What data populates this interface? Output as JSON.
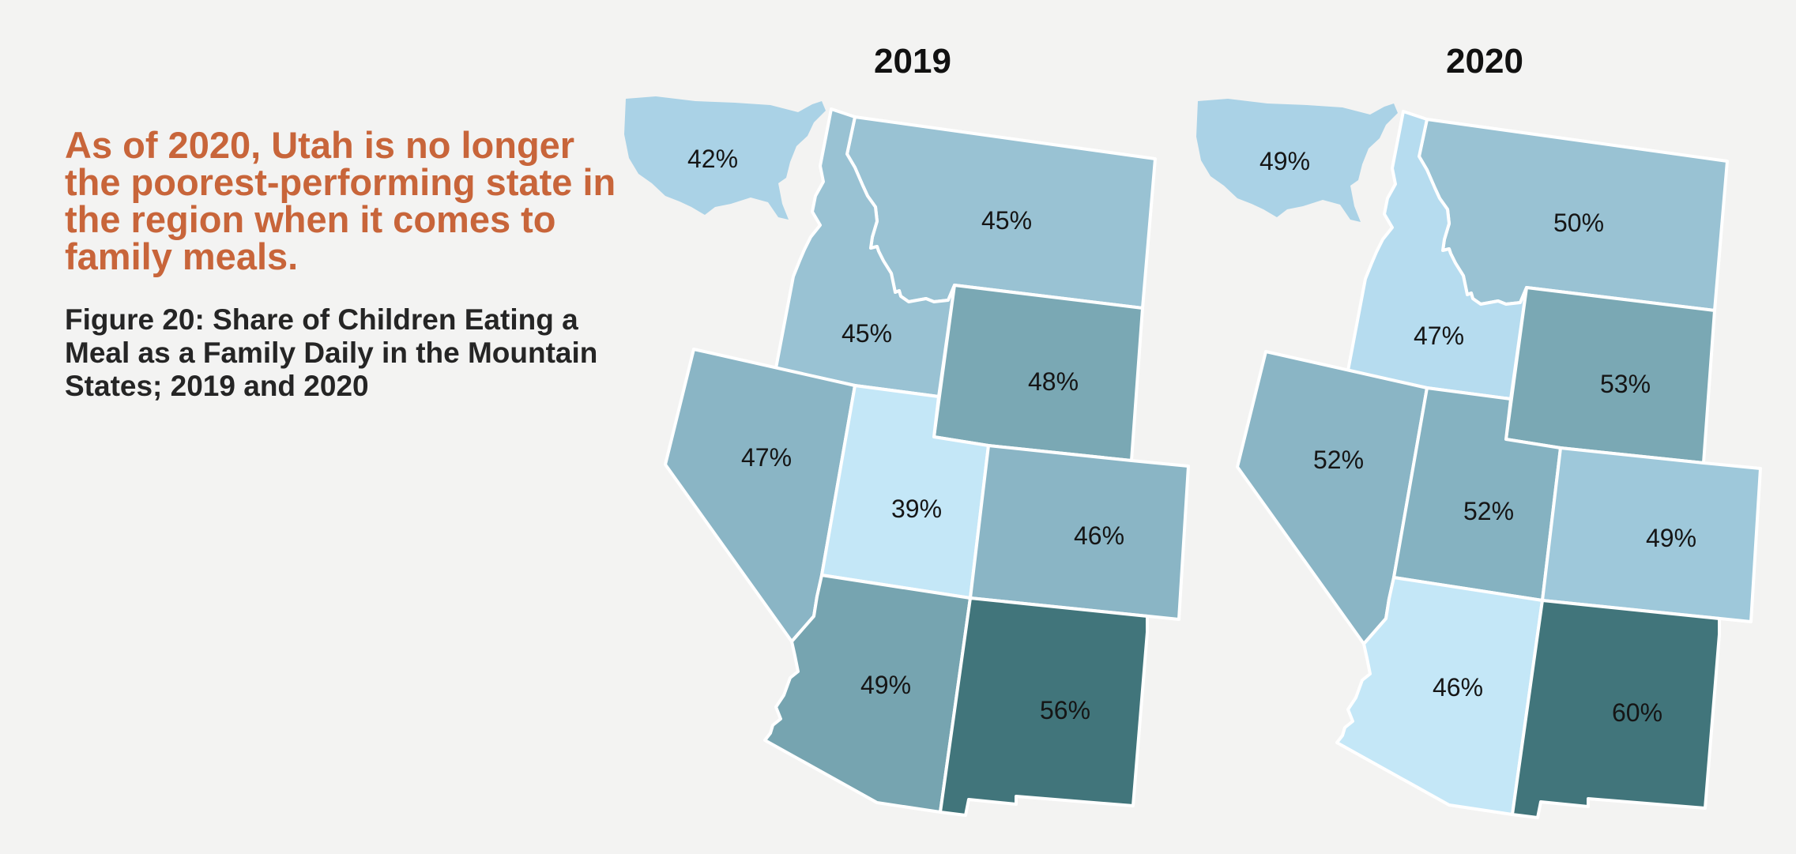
{
  "headline": "As of 2020, Utah is no longer the poorest-performing state in the region when it comes to family meals.",
  "figure_title": "Figure 20: Share of Children Eating a Meal as a Family Daily in the Mountain States; 2019 and 2020",
  "colors": {
    "headline": "#c8653a",
    "background": "#f3f3f2",
    "us_inset": "#aad2e6",
    "scale_lightest": "#c4e7f7",
    "scale_light": "#b6dcef",
    "scale_mid_light": "#9ec8da",
    "scale_mid": "#8ab5c5",
    "scale_mid_dark": "#7aa8b4",
    "scale_darkest": "#41757b"
  },
  "maps": [
    {
      "year": "2019",
      "us": "42%",
      "states": {
        "Montana": {
          "value": "45%",
          "color": "#99c2d3"
        },
        "Idaho": {
          "value": "45%",
          "color": "#99c2d3"
        },
        "Wyoming": {
          "value": "48%",
          "color": "#7aa8b4"
        },
        "Nevada": {
          "value": "47%",
          "color": "#8ab5c5"
        },
        "Utah": {
          "value": "39%",
          "color": "#c4e7f7"
        },
        "Colorado": {
          "value": "46%",
          "color": "#8ab5c5"
        },
        "Arizona": {
          "value": "49%",
          "color": "#76a4b0"
        },
        "New Mexico": {
          "value": "56%",
          "color": "#41757b"
        }
      }
    },
    {
      "year": "2020",
      "us": "49%",
      "states": {
        "Montana": {
          "value": "50%",
          "color": "#99c2d3"
        },
        "Idaho": {
          "value": "47%",
          "color": "#b6dcef"
        },
        "Wyoming": {
          "value": "53%",
          "color": "#7aa8b4"
        },
        "Nevada": {
          "value": "52%",
          "color": "#8ab5c5"
        },
        "Utah": {
          "value": "52%",
          "color": "#85b2c1"
        },
        "Colorado": {
          "value": "49%",
          "color": "#9ec8da"
        },
        "Arizona": {
          "value": "46%",
          "color": "#c4e7f7"
        },
        "New Mexico": {
          "value": "60%",
          "color": "#41757b"
        }
      }
    }
  ]
}
